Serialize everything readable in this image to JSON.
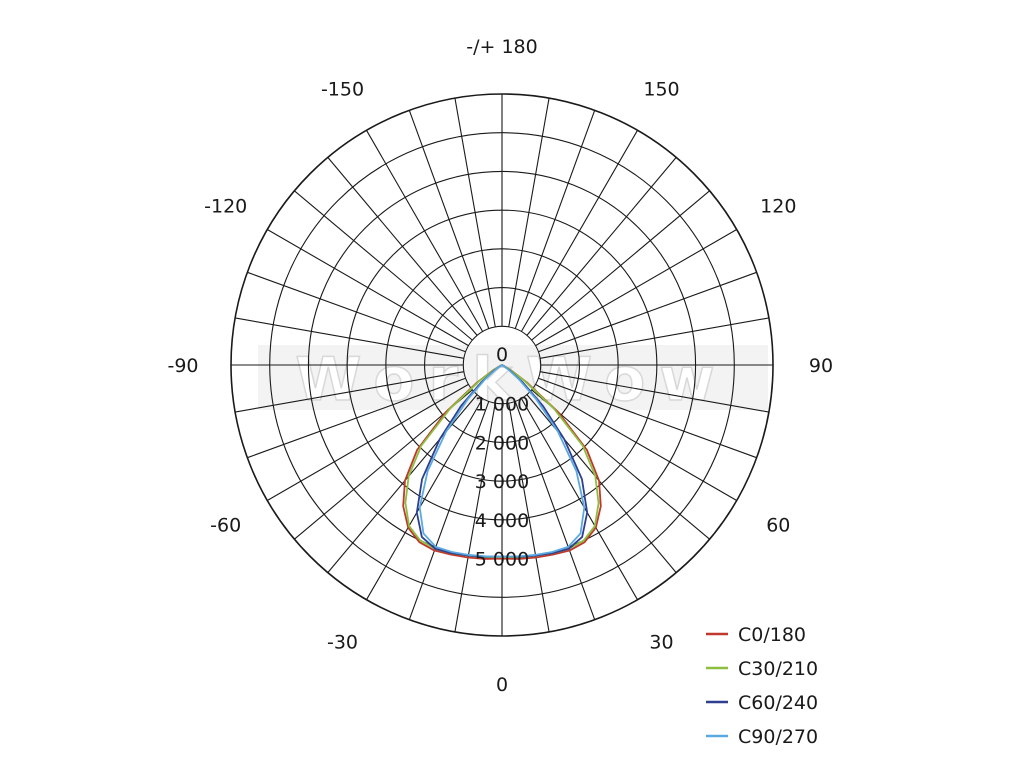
{
  "chart_data": {
    "type": "polar",
    "angle_unit": "degrees",
    "angle_ticks": [
      {
        "angle": 180,
        "label": "-/+ 180"
      },
      {
        "angle": 150,
        "label": "150"
      },
      {
        "angle": -150,
        "label": "-150"
      },
      {
        "angle": 120,
        "label": "120"
      },
      {
        "angle": -120,
        "label": "-120"
      },
      {
        "angle": 90,
        "label": "90"
      },
      {
        "angle": -90,
        "label": "-90"
      },
      {
        "angle": 60,
        "label": "60"
      },
      {
        "angle": -60,
        "label": "-60"
      },
      {
        "angle": 30,
        "label": "30"
      },
      {
        "angle": -30,
        "label": "-30"
      },
      {
        "angle": 0,
        "label": "0"
      }
    ],
    "radial_ticks": [
      {
        "value": 0,
        "label": "0"
      },
      {
        "value": 1000,
        "label": "1 000"
      },
      {
        "value": 2000,
        "label": "2 000"
      },
      {
        "value": 3000,
        "label": "3 000"
      },
      {
        "value": 4000,
        "label": "4 000"
      },
      {
        "value": 5000,
        "label": "5 000"
      }
    ],
    "r_max": 7000,
    "angular_gridline_step": 10,
    "legend_position": "bottom-right",
    "grid": true,
    "watermark": "WorkWow",
    "series": [
      {
        "name": "C0/180",
        "color": "#c0392b",
        "angles": [
          -90,
          -85,
          -80,
          -75,
          -70,
          -65,
          -60,
          -55,
          -50,
          -45,
          -40,
          -35,
          -30,
          -25,
          -20,
          -15,
          -10,
          -5,
          0,
          5,
          10,
          15,
          20,
          25,
          30,
          35,
          40,
          45,
          50,
          55,
          60,
          65,
          70,
          75,
          80,
          85,
          90
        ],
        "values": [
          0,
          0,
          0,
          0,
          0,
          40,
          240,
          780,
          1900,
          3100,
          3900,
          4450,
          4850,
          5050,
          5100,
          5070,
          5050,
          5030,
          5000,
          5030,
          5050,
          5070,
          5100,
          5050,
          4850,
          4450,
          3900,
          3100,
          1900,
          780,
          240,
          40,
          0,
          0,
          0,
          0,
          0
        ]
      },
      {
        "name": "C30/210",
        "color": "#8cbf3f",
        "angles": [
          -90,
          -85,
          -80,
          -75,
          -70,
          -65,
          -60,
          -55,
          -50,
          -45,
          -40,
          -35,
          -30,
          -25,
          -20,
          -15,
          -10,
          -5,
          0,
          5,
          10,
          15,
          20,
          25,
          30,
          35,
          40,
          45,
          50,
          55,
          60,
          65,
          70,
          75,
          80,
          85,
          90
        ],
        "values": [
          0,
          0,
          0,
          0,
          0,
          30,
          200,
          700,
          1750,
          2950,
          3750,
          4350,
          4800,
          5000,
          5050,
          5030,
          5000,
          4980,
          4960,
          4980,
          5000,
          5030,
          5050,
          5000,
          4800,
          4350,
          3750,
          2950,
          1750,
          700,
          200,
          30,
          0,
          0,
          0,
          0,
          0
        ]
      },
      {
        "name": "C60/240",
        "color": "#2f3f8f",
        "angles": [
          -90,
          -85,
          -80,
          -75,
          -70,
          -65,
          -60,
          -55,
          -50,
          -45,
          -40,
          -35,
          -30,
          -25,
          -20,
          -15,
          -10,
          -5,
          0,
          5,
          10,
          15,
          20,
          25,
          30,
          35,
          40,
          45,
          50,
          55,
          60,
          65,
          70,
          75,
          80,
          85,
          90
        ],
        "values": [
          0,
          0,
          0,
          0,
          0,
          0,
          50,
          250,
          700,
          1500,
          2500,
          3600,
          4400,
          4900,
          5050,
          5030,
          5000,
          4970,
          4950,
          4970,
          5000,
          5030,
          5050,
          4900,
          4400,
          3600,
          2500,
          1500,
          700,
          250,
          50,
          0,
          0,
          0,
          0,
          0,
          0
        ]
      },
      {
        "name": "C90/270",
        "color": "#5aa9e0",
        "angles": [
          -90,
          -85,
          -80,
          -75,
          -70,
          -65,
          -60,
          -55,
          -50,
          -45,
          -40,
          -35,
          -30,
          -25,
          -20,
          -15,
          -10,
          -5,
          0,
          5,
          10,
          15,
          20,
          25,
          30,
          35,
          40,
          45,
          50,
          55,
          60,
          65,
          70,
          75,
          80,
          85,
          90
        ],
        "values": [
          0,
          0,
          0,
          0,
          0,
          0,
          30,
          180,
          560,
          1250,
          2250,
          3350,
          4250,
          4800,
          5000,
          5000,
          4980,
          4960,
          4950,
          4960,
          4980,
          5000,
          5000,
          4800,
          4250,
          3350,
          2250,
          1250,
          560,
          180,
          30,
          0,
          0,
          0,
          0,
          0,
          0
        ]
      }
    ]
  }
}
